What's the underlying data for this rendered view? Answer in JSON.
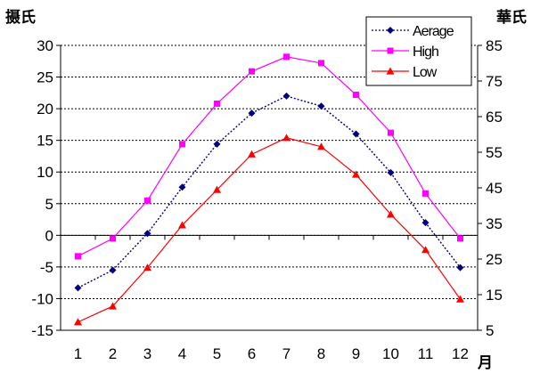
{
  "chart_data": {
    "type": "line",
    "left_axis_unit": "摄氏",
    "right_axis_unit": "華氏",
    "x_axis_unit": "月",
    "categories": [
      "1",
      "2",
      "3",
      "4",
      "5",
      "6",
      "7",
      "8",
      "9",
      "10",
      "11",
      "12"
    ],
    "left_ylim": [
      -15,
      30
    ],
    "left_yticks": [
      "30",
      "25",
      "20",
      "15",
      "10",
      "5",
      "0",
      "-5",
      "-10",
      "-15"
    ],
    "right_ylim": [
      5,
      85
    ],
    "right_yticks": [
      "85",
      "75",
      "65",
      "55",
      "45",
      "35",
      "25",
      "15",
      "5"
    ],
    "grid": "horizontal dotted",
    "legend_position": "top-right",
    "series": [
      {
        "name": "Average",
        "legend_label": "Aerage",
        "color": "#000080",
        "line": "dotted",
        "marker": "diamond",
        "values": [
          -8.3,
          -5.5,
          0.3,
          7.6,
          14.4,
          19.3,
          22.0,
          20.4,
          16.0,
          9.9,
          2.0,
          -5.1
        ]
      },
      {
        "name": "High",
        "legend_label": "High",
        "color": "#ff00ff",
        "line": "solid",
        "marker": "square",
        "values": [
          -3.3,
          -0.5,
          5.5,
          14.4,
          20.8,
          25.9,
          28.2,
          27.2,
          22.2,
          16.2,
          6.6,
          -0.5
        ]
      },
      {
        "name": "Low",
        "legend_label": "Low",
        "color": "#ff0000",
        "line": "solid",
        "marker": "triangle",
        "values": [
          -13.7,
          -11.2,
          -5.1,
          1.6,
          7.2,
          12.8,
          15.4,
          14.0,
          9.6,
          3.3,
          -2.3,
          -10.1
        ]
      }
    ]
  }
}
